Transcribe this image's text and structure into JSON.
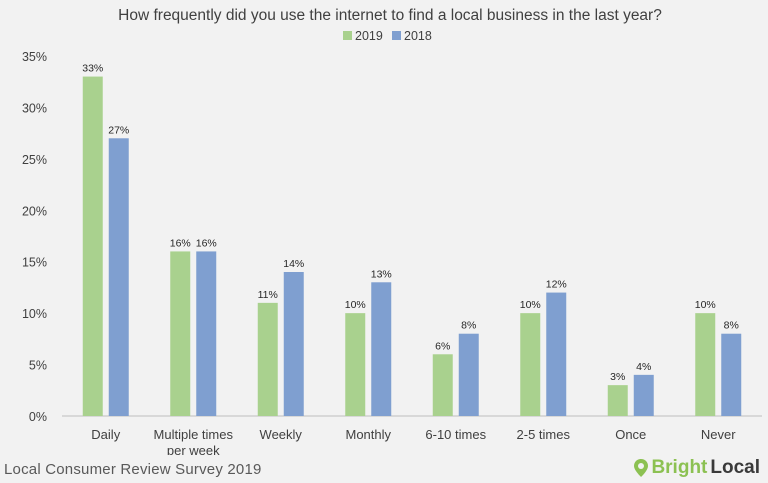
{
  "chart_data": {
    "type": "bar",
    "title": "How frequently did you use the internet to find a local business in the last year?",
    "categories": [
      "Daily",
      "Multiple times per week",
      "Weekly",
      "Monthly",
      "6-10 times",
      "2-5 times",
      "Once",
      "Never"
    ],
    "category_lines": [
      [
        "Daily"
      ],
      [
        "Multiple times",
        "per week"
      ],
      [
        "Weekly"
      ],
      [
        "Monthly"
      ],
      [
        "6-10 times"
      ],
      [
        "2-5 times"
      ],
      [
        "Once"
      ],
      [
        "Never"
      ]
    ],
    "series": [
      {
        "name": "2019",
        "color": "#a9d18e",
        "values": [
          33,
          16,
          11,
          10,
          6,
          10,
          3,
          10
        ],
        "labels": [
          "33%",
          "16%",
          "11%",
          "10%",
          "6%",
          "10%",
          "3%",
          "10%"
        ]
      },
      {
        "name": "2018",
        "color": "#7f9fd0",
        "values": [
          27,
          16,
          14,
          13,
          8,
          12,
          4,
          8
        ],
        "labels": [
          "27%",
          "16%",
          "14%",
          "13%",
          "8%",
          "12%",
          "4%",
          "8%"
        ]
      }
    ],
    "ylim": [
      0,
      35
    ],
    "yticks": [
      0,
      5,
      10,
      15,
      20,
      25,
      30,
      35
    ],
    "ytick_labels": [
      "0%",
      "5%",
      "10%",
      "15%",
      "20%",
      "25%",
      "30%",
      "35%"
    ],
    "legend_position": "top-center",
    "grid": false
  },
  "footer": {
    "source": "Local Consumer Review Survey 2019",
    "brand_part1": "Bright",
    "brand_part2": "Local"
  },
  "colors": {
    "background": "#f2f2f2",
    "brand_green": "#8cc152"
  },
  "icons": {
    "brand_logo": "location-pin-icon"
  }
}
